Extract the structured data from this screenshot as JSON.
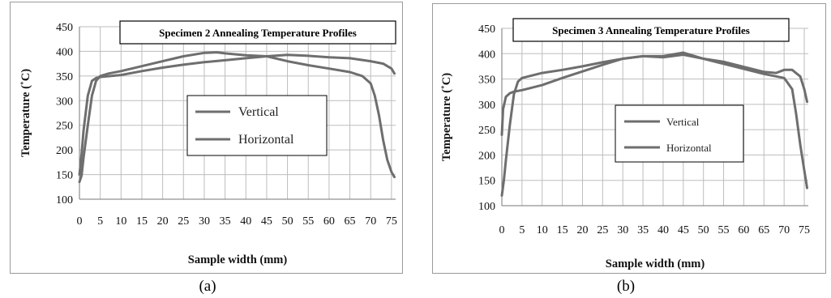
{
  "colors": {
    "series": "#6e6e6e",
    "grid": "#bdbdbd",
    "frame": "#9a9a9a"
  },
  "panels": [
    {
      "caption": "(a)"
    },
    {
      "caption": "(b)"
    }
  ],
  "chart_data": [
    {
      "type": "line",
      "title": "Specimen 2 Annealing Temperature Profiles",
      "xlabel": "Sample width (mm)",
      "ylabel": "Temperature (˚C)",
      "xlim": [
        0,
        76
      ],
      "ylim": [
        100,
        450
      ],
      "yticks": [
        100,
        150,
        200,
        250,
        300,
        350,
        400,
        450
      ],
      "xticks": [
        0,
        5,
        10,
        15,
        20,
        25,
        30,
        35,
        40,
        45,
        50,
        55,
        60,
        65,
        70,
        75
      ],
      "grid": true,
      "legend_position": "center-right",
      "series": [
        {
          "name": "Vertical",
          "x": [
            0,
            0.5,
            1,
            2,
            3,
            4,
            5,
            7,
            10,
            15,
            20,
            25,
            30,
            33,
            35,
            40,
            45,
            50,
            55,
            60,
            65,
            68,
            70,
            71,
            72,
            73,
            74,
            75,
            75.7
          ],
          "y": [
            135,
            148,
            185,
            250,
            310,
            340,
            350,
            355,
            360,
            370,
            380,
            390,
            397,
            398,
            396,
            392,
            390,
            380,
            372,
            365,
            358,
            350,
            335,
            310,
            270,
            220,
            180,
            155,
            145
          ]
        },
        {
          "name": "Horizontal",
          "x": [
            0,
            0.5,
            1,
            2,
            3,
            4,
            5,
            10,
            15,
            20,
            25,
            30,
            35,
            40,
            45,
            50,
            55,
            60,
            65,
            70,
            73,
            75,
            75.7
          ],
          "y": [
            150,
            190,
            240,
            310,
            340,
            346,
            348,
            352,
            360,
            367,
            373,
            378,
            382,
            386,
            390,
            393,
            391,
            388,
            386,
            380,
            375,
            365,
            355
          ]
        }
      ]
    },
    {
      "type": "line",
      "title": "Specimen 3 Annealing Temperature Profiles",
      "xlabel": "Sample width (mm)",
      "ylabel": "Temperature (˚C)",
      "xlim": [
        0,
        76
      ],
      "ylim": [
        100,
        450
      ],
      "yticks": [
        100,
        150,
        200,
        250,
        300,
        350,
        400,
        450
      ],
      "xticks": [
        0,
        5,
        10,
        15,
        20,
        25,
        30,
        35,
        40,
        45,
        50,
        55,
        60,
        65,
        70,
        75
      ],
      "grid": true,
      "legend_position": "center-right",
      "series": [
        {
          "name": "Vertical",
          "x": [
            0,
            0.5,
            1,
            2,
            3,
            4,
            5,
            10,
            15,
            20,
            25,
            30,
            35,
            40,
            45,
            50,
            55,
            60,
            65,
            70,
            72,
            73,
            74,
            75,
            75.7
          ],
          "y": [
            120,
            150,
            190,
            260,
            320,
            345,
            352,
            362,
            368,
            375,
            383,
            390,
            395,
            395,
            402,
            390,
            380,
            370,
            360,
            352,
            330,
            280,
            220,
            170,
            135
          ]
        },
        {
          "name": "Horizontal",
          "x": [
            0,
            0.3,
            1,
            2,
            3,
            5,
            10,
            15,
            20,
            25,
            30,
            35,
            40,
            45,
            50,
            55,
            60,
            65,
            68,
            70,
            72,
            74,
            75,
            75.7
          ],
          "y": [
            240,
            290,
            315,
            322,
            325,
            328,
            338,
            352,
            365,
            378,
            390,
            395,
            393,
            398,
            390,
            384,
            374,
            364,
            362,
            368,
            368,
            355,
            330,
            305
          ]
        }
      ]
    }
  ]
}
